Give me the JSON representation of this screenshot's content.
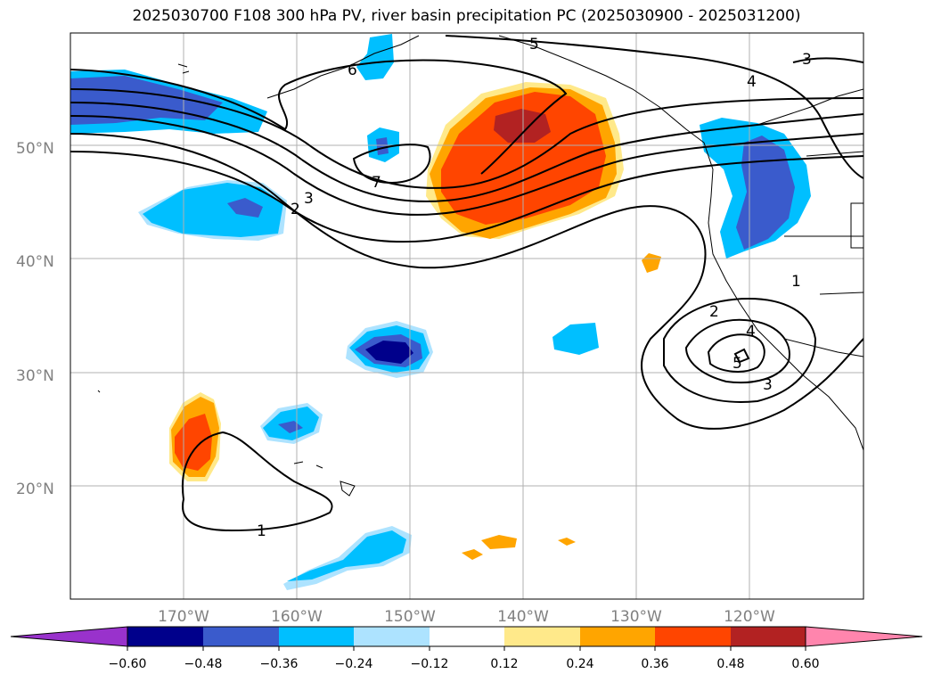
{
  "title": "2025030700 F108 300 hPa PV, river basin precipitation PC (2025030900 - 2025031200)",
  "map": {
    "lon_range": [
      -180,
      -110
    ],
    "lat_range": [
      10,
      60
    ],
    "lat_ticks": [
      "20°N",
      "30°N",
      "40°N",
      "50°N"
    ],
    "lon_ticks": [
      "170°W",
      "160°W",
      "150°W",
      "140°W",
      "130°W",
      "120°W"
    ],
    "grid": true,
    "pv_contour_labels": [
      "6",
      "5",
      "4",
      "3",
      "3",
      "2",
      "7",
      "1",
      "2",
      "4",
      "5",
      "3",
      "1"
    ]
  },
  "colorbar": {
    "tick_labels": [
      "−0.60",
      "−0.48",
      "−0.36",
      "−0.24",
      "−0.12",
      "0.12",
      "0.24",
      "0.36",
      "0.48",
      "0.60"
    ],
    "colors": [
      "#9932CC",
      "#00008B",
      "#3A5BCC",
      "#00BFFF",
      "#ADE3FF",
      "#FFFFFF",
      "#FFE98A",
      "#FFA500",
      "#FF4500",
      "#B22222",
      "#FF85AD"
    ],
    "extend": "both"
  }
}
